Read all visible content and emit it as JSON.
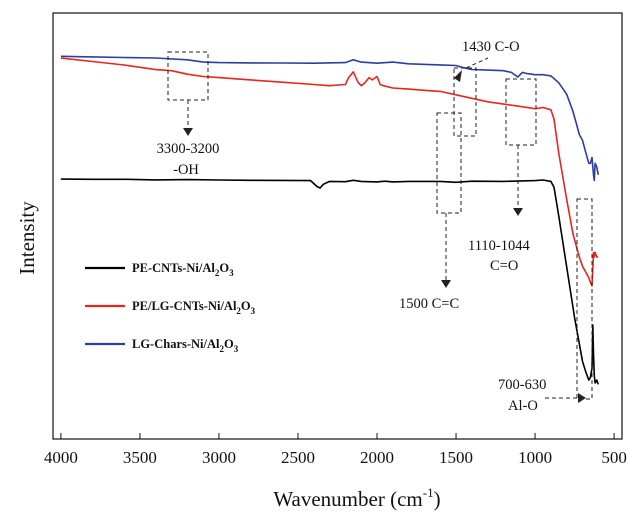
{
  "chart_data": {
    "type": "line",
    "xlabel": "Wavenumber (cm",
    "xlabel_superscript": "-1",
    "xlabel_close": ")",
    "ylabel": "Intensity",
    "xlim": [
      4050,
      450
    ],
    "x_reversed": true,
    "y_ticks_shown": false,
    "x_ticks": [
      4000,
      3500,
      3000,
      2500,
      2000,
      1500,
      1000,
      500
    ],
    "legend_position": "lower-left",
    "series": [
      {
        "name_prefix": "PE-CNTs-Ni/Al",
        "name_sub": "2",
        "name_mid": "O",
        "name_sub2": "3",
        "color": "#000000",
        "x": [
          4000,
          3800,
          3600,
          3400,
          3200,
          3000,
          2800,
          2600,
          2420,
          2380,
          2360,
          2340,
          2300,
          2200,
          2150,
          2100,
          2000,
          1950,
          1900,
          1800,
          1600,
          1500,
          1400,
          1200,
          1000,
          950,
          900,
          880,
          850,
          800,
          750,
          700,
          680,
          660,
          650,
          640,
          635,
          630,
          625,
          620,
          610,
          600
        ],
        "y": [
          0.6,
          0.5,
          0.5,
          0.1,
          0.3,
          0.0,
          -0.2,
          -0.3,
          -0.4,
          -4.5,
          -5.5,
          -3.0,
          -1.0,
          -1.2,
          -0.2,
          -1.0,
          -1.3,
          -0.8,
          -1.3,
          -1.0,
          -1.0,
          -1.6,
          -0.8,
          -1.0,
          -0.4,
          0.0,
          -1.0,
          -5.0,
          -25.0,
          -60.0,
          -95.0,
          -125.0,
          -132.0,
          -138.0,
          -136.0,
          -130.0,
          -100.0,
          -120.0,
          -135.0,
          -140.0,
          -138.0,
          -141.0
        ]
      },
      {
        "name_prefix": "PE/LG-CNTs-Ni/Al",
        "name_sub": "2",
        "name_mid": "O",
        "name_sub2": "3",
        "color": "#e8251e",
        "x": [
          4000,
          3800,
          3600,
          3400,
          3300,
          3200,
          3100,
          3000,
          2800,
          2600,
          2400,
          2300,
          2200,
          2180,
          2150,
          2120,
          2100,
          2080,
          2050,
          2030,
          2000,
          1980,
          1960,
          1900,
          1800,
          1700,
          1600,
          1500,
          1400,
          1300,
          1200,
          1100,
          1000,
          950,
          900,
          880,
          850,
          800,
          760,
          720,
          700,
          680,
          660,
          650,
          640,
          635,
          630,
          625,
          620,
          610,
          600
        ],
        "y": [
          73.0,
          70.0,
          67.0,
          63.0,
          62.0,
          59.0,
          57.0,
          56.0,
          54.0,
          52.0,
          50.0,
          49.0,
          50.0,
          56.0,
          61.0,
          52.0,
          49.0,
          51.0,
          56.0,
          54.0,
          57.0,
          50.0,
          49.0,
          47.0,
          46.0,
          45.0,
          44.0,
          41.0,
          38.0,
          35.0,
          33.0,
          31.0,
          29.0,
          30.0,
          28.0,
          20.0,
          -10.0,
          -50.0,
          -80.0,
          -100.0,
          -108.0,
          -113.0,
          -118.0,
          -122.0,
          -125.0,
          -110.0,
          -96.0,
          -100.0,
          -96.0,
          -100.0,
          -100.0
        ]
      },
      {
        "name_prefix": "LG-Chars-Ni/Al",
        "name_sub": "2",
        "name_mid": "O",
        "name_sub2": "3",
        "color": "#2e3e9e",
        "x": [
          4000,
          3800,
          3600,
          3400,
          3200,
          3100,
          3000,
          2800,
          2600,
          2400,
          2200,
          2150,
          2100,
          2000,
          1900,
          1800,
          1600,
          1500,
          1450,
          1400,
          1300,
          1200,
          1150,
          1110,
          1080,
          1050,
          1000,
          950,
          900,
          850,
          800,
          760,
          740,
          720,
          700,
          680,
          660,
          650,
          640,
          630,
          625,
          620,
          610,
          600
        ],
        "y": [
          78.0,
          77.5,
          77.0,
          76.5,
          75.0,
          73.0,
          72.5,
          72.3,
          72.2,
          72.0,
          72.5,
          75.0,
          73.0,
          72.0,
          73.0,
          71.5,
          70.5,
          70.0,
          68.0,
          66.5,
          66.0,
          65.5,
          64.0,
          60.0,
          64.0,
          63.0,
          62.0,
          62.0,
          61.0,
          55.0,
          45.0,
          30.0,
          20.0,
          10.0,
          5.0,
          -5.0,
          -15.0,
          -15.0,
          -10.0,
          -25.0,
          -30.0,
          -15.0,
          -18.0,
          -25.0
        ]
      }
    ],
    "annotations": [
      {
        "id": "oh",
        "line1": "3300-3200",
        "line2": "-OH"
      },
      {
        "id": "co",
        "line1": "1430 C-O"
      },
      {
        "id": "cc",
        "line1": "1500 C=C"
      },
      {
        "id": "c-o-double",
        "line1": "1110-1044",
        "line2": "C=O"
      },
      {
        "id": "alo",
        "line1": "700-630",
        "line2": "Al-O"
      }
    ]
  }
}
